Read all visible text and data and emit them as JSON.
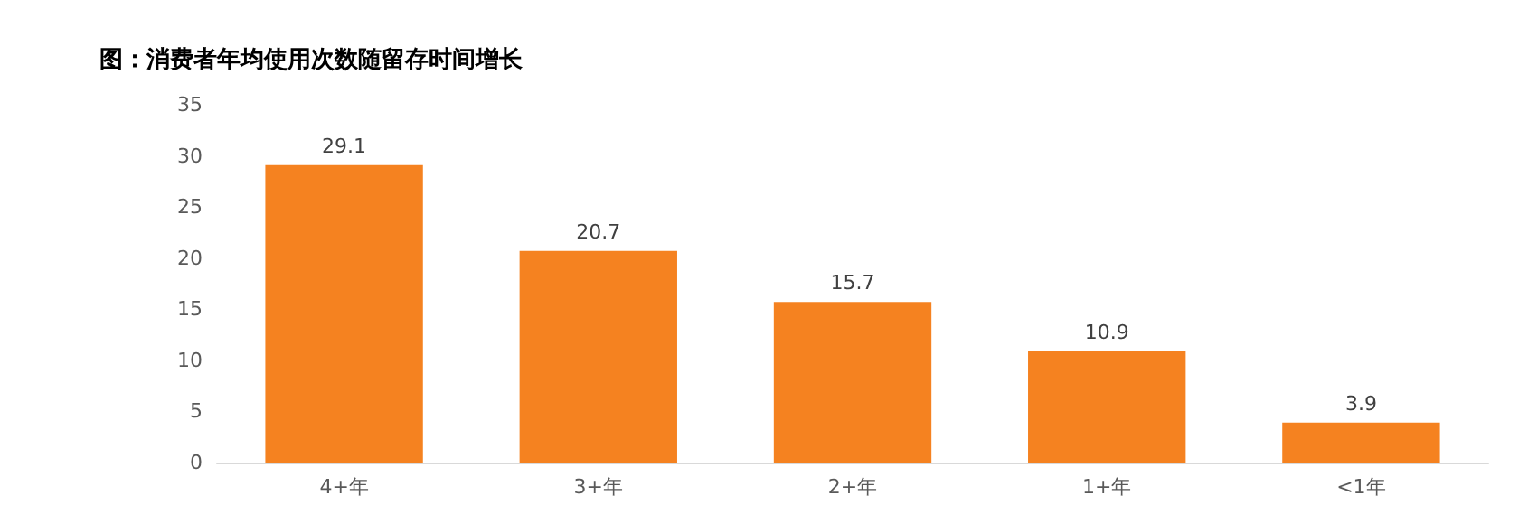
{
  "chart_data": {
    "type": "bar",
    "title": "图：消费者年均使用次数随留存时间增长",
    "categories": [
      "4+年",
      "3+年",
      "2+年",
      "1+年",
      "<1年"
    ],
    "values": [
      29.1,
      20.7,
      15.7,
      10.9,
      3.9
    ],
    "color": "#f58220",
    "ylim": [
      0,
      35
    ],
    "yticks": [
      0,
      5,
      10,
      15,
      20,
      25,
      30,
      35
    ],
    "data_labels": true
  }
}
